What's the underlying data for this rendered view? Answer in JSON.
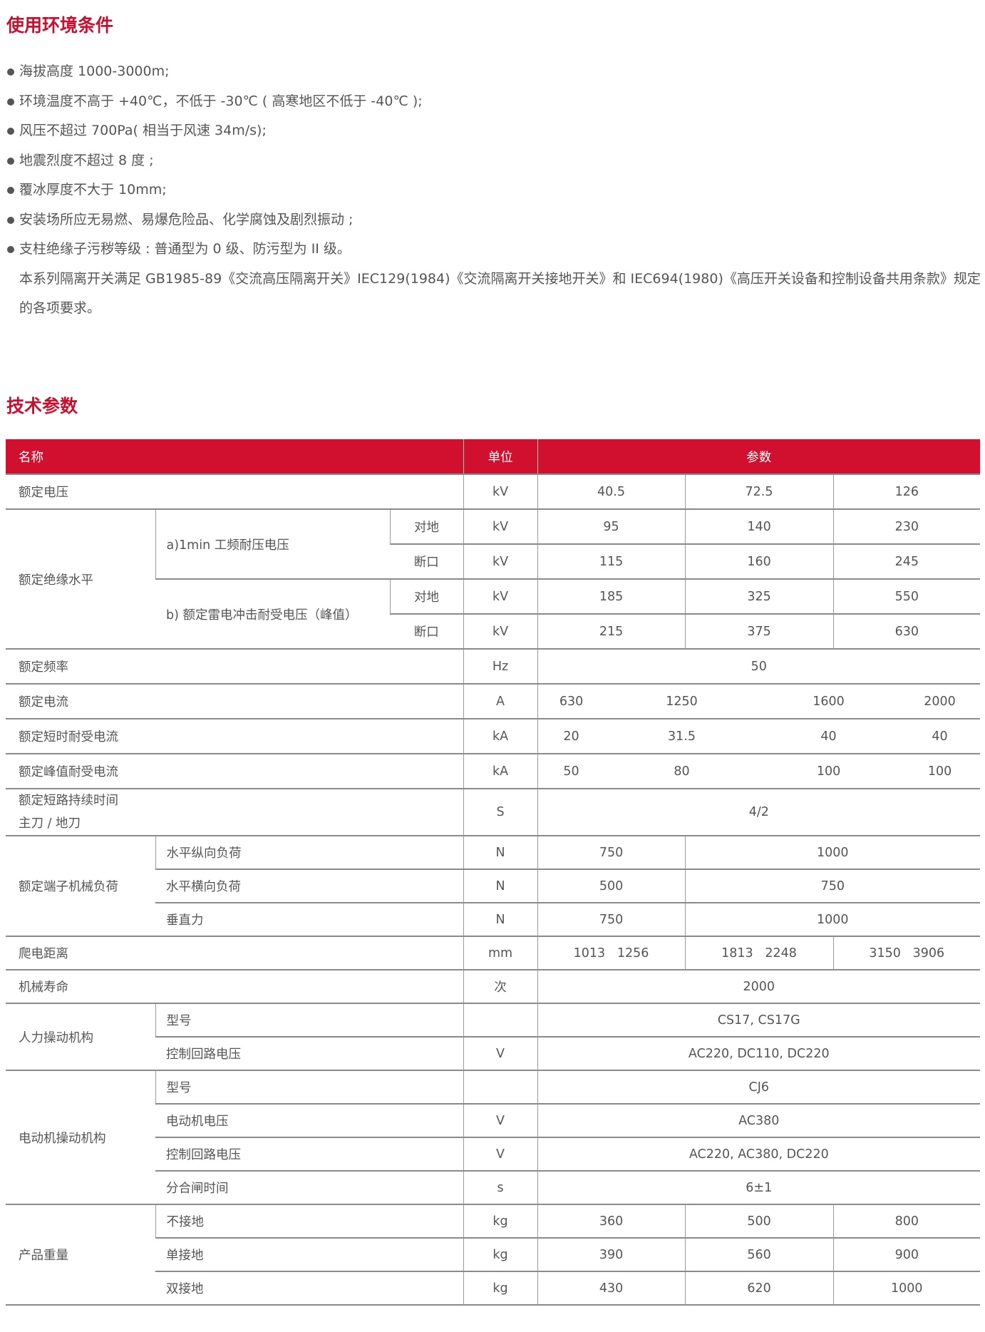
{
  "env": {
    "title": "使用环境条件",
    "items": [
      "海拔高度 1000-3000m;",
      "环境温度不高于 +40℃，不低于 -30℃ ( 高寒地区不低于 -40℃ );",
      "风压不超过 700Pa( 相当于风速 34m/s);",
      "地震烈度不超过 8 度 ;",
      "覆冰厚度不大于 10mm;",
      "安装场所应无易燃、易爆危险品、化学腐蚀及剧烈振动 ;",
      "支柱绝缘子污秽等级 : 普通型为 0 级、防污型为 II 级。"
    ],
    "note": "本系列隔离开关满足 GB1985-89《交流高压隔离开关》IEC129(1984)《交流隔离开关接地开关》和 IEC694(1980)《高压开关设备和控制设备共用条款》规定的各项要求。"
  },
  "tech": {
    "title": "技术参数",
    "header": {
      "name": "名称",
      "unit": "单位",
      "params": "参数"
    },
    "colors": {
      "accent": "#c8102e",
      "header_bg": "#d0102e"
    },
    "rated_voltage": {
      "label": "额定电压",
      "unit": "kV",
      "values": [
        "40.5",
        "72.5",
        "126"
      ]
    },
    "insulation": {
      "label": "额定绝缘水平",
      "a": "a)1min 工频耐压电压",
      "b": "b) 额定雷电冲击耐受电压（峰值）",
      "ground": "对地",
      "break": "断口",
      "unit": "kV",
      "a_ground": [
        "95",
        "140",
        "230"
      ],
      "a_break": [
        "115",
        "160",
        "245"
      ],
      "b_ground": [
        "185",
        "325",
        "550"
      ],
      "b_break": [
        "215",
        "375",
        "630"
      ]
    },
    "frequency": {
      "label": "额定频率",
      "unit": "Hz",
      "value": "50"
    },
    "current": {
      "label": "额定电流",
      "unit": "A",
      "values": [
        "630",
        "1250",
        "1600",
        "2000"
      ]
    },
    "short_time": {
      "label": "额定短时耐受电流",
      "unit": "kA",
      "values": [
        "20",
        "31.5",
        "40",
        "40"
      ]
    },
    "peak": {
      "label": "额定峰值耐受电流",
      "unit": "kA",
      "values": [
        "50",
        "80",
        "100",
        "100"
      ]
    },
    "duration": {
      "label1": "额定短路持续时间",
      "label2": "主刀 / 地刀",
      "unit": "S",
      "value": "4/2"
    },
    "terminal": {
      "label": "额定端子机械负荷",
      "unit": "N",
      "rows": [
        {
          "label": "水平纵向负荷",
          "v1": "750",
          "v2": "1000"
        },
        {
          "label": "水平横向负荷",
          "v1": "500",
          "v2": "750"
        },
        {
          "label": "垂直力",
          "v1": "750",
          "v2": "1000"
        }
      ]
    },
    "creepage": {
      "label": "爬电距离",
      "unit": "mm",
      "values": [
        "1013   1256",
        "1813   2248",
        "3150   3906"
      ]
    },
    "life": {
      "label": "机械寿命",
      "unit": "次",
      "value": "2000"
    },
    "manual": {
      "label": "人力操动机构",
      "model_label": "型号",
      "model": "CS17, CS17G",
      "ctrl_label": "控制回路电压",
      "ctrl_unit": "V",
      "ctrl": "AC220, DC110, DC220"
    },
    "motor": {
      "label": "电动机操动机构",
      "model_label": "型号",
      "model": "CJ6",
      "motor_label": "电动机电压",
      "motor_unit": "V",
      "motor": "AC380",
      "ctrl_label": "控制回路电压",
      "ctrl_unit": "V",
      "ctrl": "AC220, AC380, DC220",
      "time_label": "分合闸时间",
      "time_unit": "s",
      "time": "6±1"
    },
    "weight": {
      "label": "产品重量",
      "unit": "kg",
      "rows": [
        {
          "label": "不接地",
          "values": [
            "360",
            "500",
            "800"
          ]
        },
        {
          "label": "单接地",
          "values": [
            "390",
            "560",
            "900"
          ]
        },
        {
          "label": "双接地",
          "values": [
            "430",
            "620",
            "1000"
          ]
        }
      ]
    }
  }
}
